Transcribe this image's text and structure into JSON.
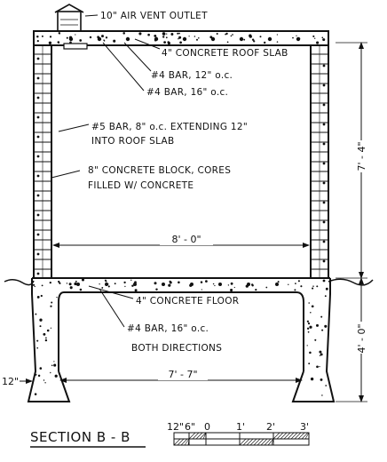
{
  "labels": {
    "vent": "10\" AIR VENT OUTLET",
    "roof_slab": "4\" CONCRETE ROOF SLAB",
    "bar_12": "#4 BAR, 12\" o.c.",
    "bar_16": "#4 BAR, 16\" o.c.",
    "wall_bar_1": "#5 BAR, 8\" o.c. EXTENDING 12\"",
    "wall_bar_2": "INTO ROOF SLAB",
    "block_1": "8\" CONCRETE BLOCK, CORES",
    "block_2": "FILLED W/ CONCRETE",
    "floor": "4\" CONCRETE FLOOR",
    "floor_bar_1": "#4 BAR, 16\" o.c.",
    "floor_bar_2": "BOTH DIRECTIONS"
  },
  "dimensions": {
    "interior_width": "8' - 0\"",
    "wall_height": "7' - 4\"",
    "footing_depth": "4' - 0\"",
    "footing_span": "7' - 7\"",
    "footing_width": "12\""
  },
  "title": "SECTION B - B",
  "scale_bar": {
    "ticks": [
      "12\"",
      "6\"",
      "0",
      "1'",
      "2'",
      "3'"
    ]
  },
  "colors": {
    "ink": "#111111",
    "paper": "#ffffff"
  }
}
